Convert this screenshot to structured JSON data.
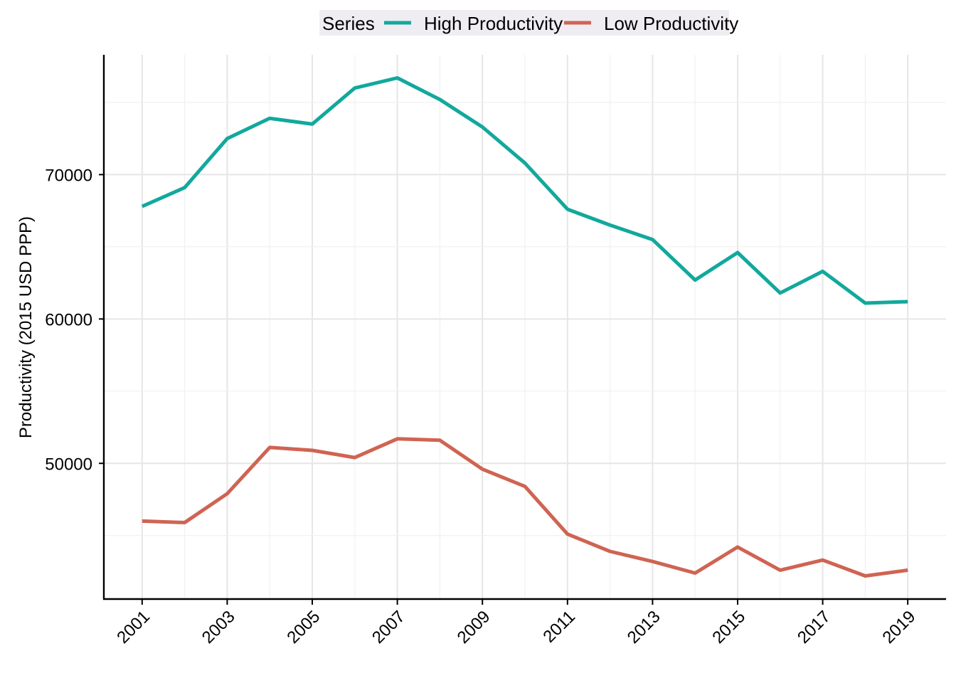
{
  "chart_data": {
    "type": "line",
    "ylabel": "Productivity (2015 USD PPP)",
    "xlabel": "",
    "legend": {
      "title": "Series",
      "position": "top"
    },
    "x": [
      2001,
      2002,
      2003,
      2004,
      2005,
      2006,
      2007,
      2008,
      2009,
      2010,
      2011,
      2012,
      2013,
      2014,
      2015,
      2016,
      2017,
      2018,
      2019
    ],
    "x_ticks": [
      2001,
      2003,
      2005,
      2007,
      2009,
      2011,
      2013,
      2015,
      2017,
      2019
    ],
    "y_ticks": [
      50000,
      60000,
      70000
    ],
    "xlim": [
      2000.1,
      2019.9
    ],
    "ylim": [
      40600,
      78300
    ],
    "grid": true,
    "series": [
      {
        "name": "High Productivity",
        "color": "#12a89d",
        "values": [
          67800,
          69100,
          72500,
          73900,
          73500,
          76000,
          76700,
          75200,
          73300,
          70800,
          67600,
          66500,
          65500,
          62700,
          64600,
          61800,
          63300,
          61100,
          61200
        ]
      },
      {
        "name": "Low Productivity",
        "color": "#cf6452",
        "values": [
          46000,
          45900,
          47900,
          51100,
          50900,
          50400,
          51700,
          51600,
          49600,
          48400,
          45100,
          43900,
          43200,
          42400,
          44200,
          42600,
          43300,
          42200,
          42600
        ]
      }
    ]
  }
}
